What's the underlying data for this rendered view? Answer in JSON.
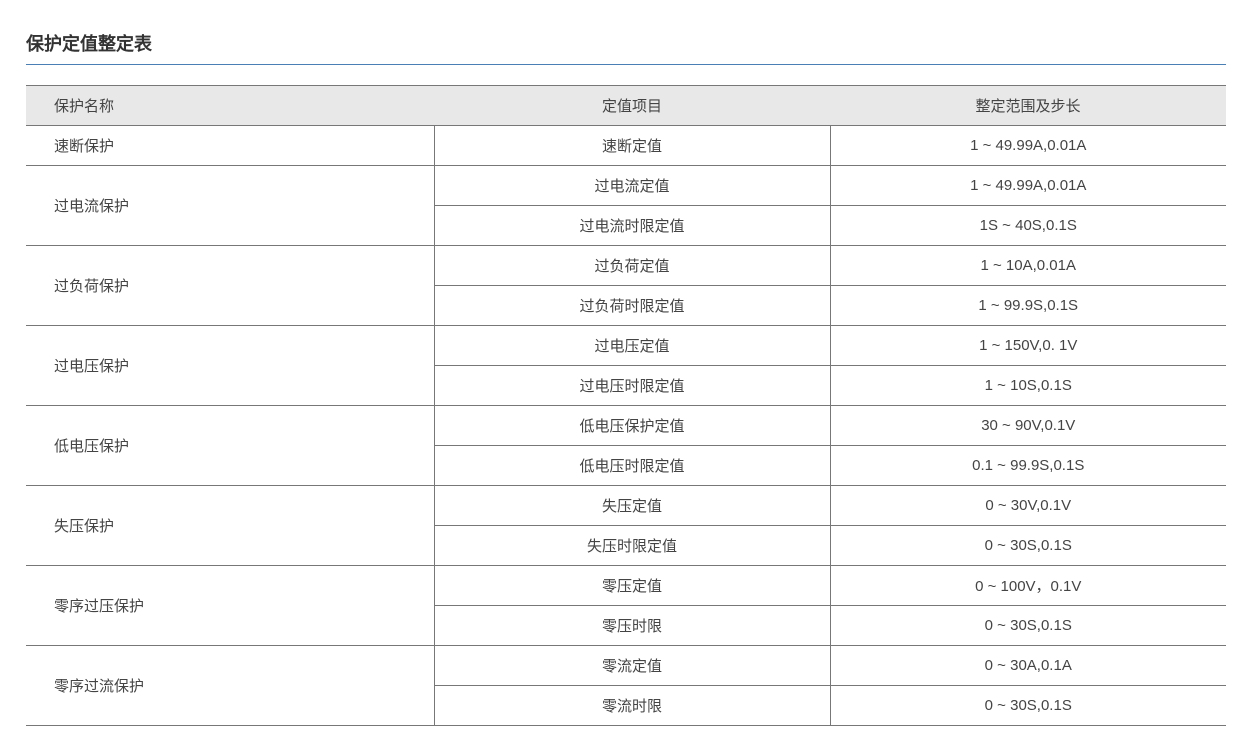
{
  "title": "保护定值整定表",
  "colors": {
    "title_underline": "#4a7fb5",
    "header_bg": "#e8e8e8",
    "border": "#777777",
    "text": "#444444",
    "title_text": "#333333",
    "background": "#ffffff"
  },
  "typography": {
    "title_fontsize": 18,
    "title_fontweight": "bold",
    "cell_fontsize": 15,
    "font_family": "Microsoft YaHei"
  },
  "table": {
    "columns": [
      {
        "label": "保护名称",
        "align": "left",
        "width_pct": 34
      },
      {
        "label": "定值项目",
        "align": "center",
        "width_pct": 33
      },
      {
        "label": "整定范围及步长",
        "align": "center",
        "width_pct": 33
      }
    ],
    "groups": [
      {
        "name": "速断保护",
        "rows": [
          {
            "item": "速断定值",
            "range": "1 ~ 49.99A,0.01A"
          }
        ]
      },
      {
        "name": "过电流保护",
        "rows": [
          {
            "item": "过电流定值",
            "range": "1 ~ 49.99A,0.01A"
          },
          {
            "item": "过电流时限定值",
            "range": "1S ~ 40S,0.1S"
          }
        ]
      },
      {
        "name": "过负荷保护",
        "rows": [
          {
            "item": "过负荷定值",
            "range": "1 ~ 10A,0.01A"
          },
          {
            "item": "过负荷时限定值",
            "range": "1 ~ 99.9S,0.1S"
          }
        ]
      },
      {
        "name": "过电压保护",
        "rows": [
          {
            "item": "过电压定值",
            "range": "1 ~ 150V,0. 1V"
          },
          {
            "item": "过电压时限定值",
            "range": "1 ~ 10S,0.1S"
          }
        ]
      },
      {
        "name": "低电压保护",
        "rows": [
          {
            "item": "低电压保护定值",
            "range": "30 ~ 90V,0.1V"
          },
          {
            "item": "低电压时限定值",
            "range": "0.1 ~ 99.9S,0.1S"
          }
        ]
      },
      {
        "name": "失压保护",
        "rows": [
          {
            "item": "失压定值",
            "range": "0 ~ 30V,0.1V"
          },
          {
            "item": "失压时限定值",
            "range": "0 ~ 30S,0.1S"
          }
        ]
      },
      {
        "name": "零序过压保护",
        "rows": [
          {
            "item": "零压定值",
            "range": "0 ~ 100V，0.1V"
          },
          {
            "item": "零压时限",
            "range": "0 ~ 30S,0.1S"
          }
        ]
      },
      {
        "name": "零序过流保护",
        "rows": [
          {
            "item": "零流定值",
            "range": "0 ~ 30A,0.1A"
          },
          {
            "item": "零流时限",
            "range": "0 ~ 30S,0.1S"
          }
        ]
      }
    ]
  }
}
